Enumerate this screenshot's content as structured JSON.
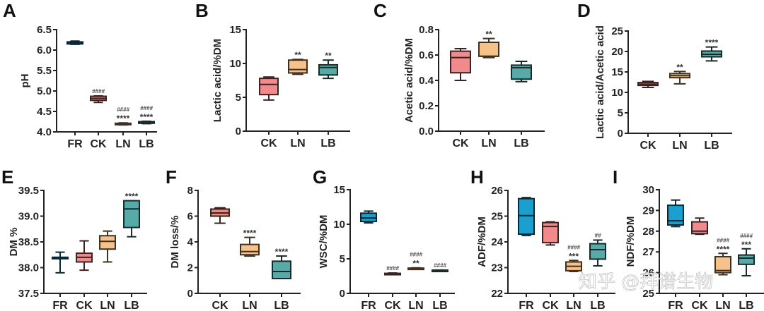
{
  "watermark": "知乎 @拜谱生物",
  "chart_data": [
    {
      "id": "A",
      "type": "box",
      "ylabel": "pH",
      "ylim": [
        4.0,
        6.5
      ],
      "yticks": [
        "4.0",
        "4.5",
        "5.0",
        "5.5",
        "6.0",
        "6.5"
      ],
      "ytick_values": [
        4.0,
        4.5,
        5.0,
        5.5,
        6.0,
        6.5
      ],
      "categories": [
        "FR",
        "CK",
        "LN",
        "LB"
      ],
      "boxes": [
        {
          "group": "FR",
          "min": 6.14,
          "q1": 6.15,
          "median": 6.18,
          "q3": 6.2,
          "max": 6.22,
          "color": "#1a9fcf",
          "annot": [
            "",
            ""
          ]
        },
        {
          "group": "CK",
          "min": 4.72,
          "q1": 4.77,
          "median": 4.82,
          "q3": 4.87,
          "max": 4.88,
          "color": "#e88a80",
          "annot": [
            "####",
            ""
          ]
        },
        {
          "group": "LN",
          "min": 4.17,
          "q1": 4.18,
          "median": 4.2,
          "q3": 4.21,
          "max": 4.22,
          "color": "#f5c497",
          "annot": [
            "####",
            "****"
          ]
        },
        {
          "group": "LB",
          "min": 4.2,
          "q1": 4.21,
          "median": 4.23,
          "q3": 4.25,
          "max": 4.26,
          "color": "#56aaa8",
          "annot": [
            "####",
            "****"
          ]
        }
      ]
    },
    {
      "id": "B",
      "type": "box",
      "ylabel": "Lactic acid/%DM",
      "ylim": [
        0,
        15
      ],
      "yticks": [
        "0",
        "5",
        "10",
        "15"
      ],
      "ytick_values": [
        0,
        5,
        10,
        15
      ],
      "categories": [
        "CK",
        "LN",
        "LB"
      ],
      "boxes": [
        {
          "group": "CK",
          "min": 4.6,
          "q1": 5.4,
          "median": 6.9,
          "q3": 7.8,
          "max": 8.0,
          "color": "#f08a8c",
          "annot": [
            "",
            ""
          ]
        },
        {
          "group": "LN",
          "min": 8.4,
          "q1": 8.6,
          "median": 9.1,
          "q3": 10.5,
          "max": 10.6,
          "color": "#f7c289",
          "annot": [
            "",
            "**"
          ]
        },
        {
          "group": "LB",
          "min": 7.8,
          "q1": 8.3,
          "median": 9.4,
          "q3": 9.8,
          "max": 10.5,
          "color": "#56aaa8",
          "annot": [
            "",
            "**"
          ]
        }
      ]
    },
    {
      "id": "C",
      "type": "box",
      "ylabel": "Acetic acid/%DM",
      "ylim": [
        0.0,
        0.8
      ],
      "yticks": [
        "0.0",
        "0.2",
        "0.4",
        "0.6",
        "0.8"
      ],
      "ytick_values": [
        0.0,
        0.2,
        0.4,
        0.6,
        0.8
      ],
      "categories": [
        "CK",
        "LN",
        "LB"
      ],
      "boxes": [
        {
          "group": "CK",
          "min": 0.4,
          "q1": 0.46,
          "median": 0.58,
          "q3": 0.63,
          "max": 0.65,
          "color": "#f08a8c",
          "annot": [
            "",
            ""
          ]
        },
        {
          "group": "LN",
          "min": 0.58,
          "q1": 0.59,
          "median": 0.59,
          "q3": 0.7,
          "max": 0.73,
          "color": "#f7c289",
          "annot": [
            "",
            "**"
          ]
        },
        {
          "group": "LB",
          "min": 0.39,
          "q1": 0.41,
          "median": 0.5,
          "q3": 0.52,
          "max": 0.55,
          "color": "#56aaa8",
          "annot": [
            "",
            ""
          ]
        }
      ]
    },
    {
      "id": "D",
      "type": "box",
      "ylabel": "Lactic acid/Acetic acid",
      "ylim": [
        0,
        25
      ],
      "yticks": [
        "0",
        "5",
        "10",
        "15",
        "20",
        "25"
      ],
      "ytick_values": [
        0,
        5,
        10,
        15,
        20,
        25
      ],
      "categories": [
        "CK",
        "LN",
        "LB"
      ],
      "boxes": [
        {
          "group": "CK",
          "min": 11.2,
          "q1": 11.7,
          "median": 12.0,
          "q3": 12.4,
          "max": 12.7,
          "color": "#f08a8c",
          "annot": [
            "",
            ""
          ]
        },
        {
          "group": "LN",
          "min": 12.1,
          "q1": 13.6,
          "median": 14.1,
          "q3": 14.6,
          "max": 15.1,
          "color": "#f7c289",
          "annot": [
            "",
            "**"
          ]
        },
        {
          "group": "LB",
          "min": 17.7,
          "q1": 18.7,
          "median": 19.3,
          "q3": 20.1,
          "max": 21.1,
          "color": "#56aaa8",
          "annot": [
            "",
            "****"
          ]
        }
      ]
    },
    {
      "id": "E",
      "type": "box",
      "ylabel": "DM %",
      "ylim": [
        37.5,
        39.5
      ],
      "yticks": [
        "37.5",
        "38.0",
        "38.5",
        "39.0",
        "39.5"
      ],
      "ytick_values": [
        37.5,
        38.0,
        38.5,
        39.0,
        39.5
      ],
      "categories": [
        "FR",
        "CK",
        "LN",
        "LB"
      ],
      "boxes": [
        {
          "group": "FR",
          "min": 37.9,
          "q1": 38.2,
          "median": 38.2,
          "q3": 38.2,
          "max": 38.3,
          "color": "#1a9fcf",
          "annot": [
            "",
            ""
          ]
        },
        {
          "group": "CK",
          "min": 37.95,
          "q1": 38.11,
          "median": 38.2,
          "q3": 38.28,
          "max": 38.52,
          "color": "#f08a8c",
          "annot": [
            "",
            ""
          ]
        },
        {
          "group": "LN",
          "min": 38.11,
          "q1": 38.36,
          "median": 38.51,
          "q3": 38.62,
          "max": 38.71,
          "color": "#f7c289",
          "annot": [
            "",
            ""
          ]
        },
        {
          "group": "LB",
          "min": 38.6,
          "q1": 38.78,
          "median": 39.14,
          "q3": 39.3,
          "max": 39.3,
          "color": "#56aaa8",
          "annot": [
            "",
            "****"
          ]
        }
      ]
    },
    {
      "id": "F",
      "type": "box",
      "ylabel": "DM loss/%",
      "ylim": [
        0,
        8
      ],
      "yticks": [
        "0",
        "2",
        "4",
        "6",
        "8"
      ],
      "ytick_values": [
        0,
        2,
        4,
        6,
        8
      ],
      "categories": [
        "CK",
        "LN",
        "LB"
      ],
      "boxes": [
        {
          "group": "CK",
          "min": 5.45,
          "q1": 6.0,
          "median": 6.25,
          "q3": 6.55,
          "max": 6.65,
          "color": "#e88a80",
          "annot": [
            "",
            ""
          ]
        },
        {
          "group": "LN",
          "min": 2.9,
          "q1": 3.0,
          "median": 3.25,
          "q3": 3.8,
          "max": 4.35,
          "color": "#f7c289",
          "annot": [
            "",
            "****"
          ]
        },
        {
          "group": "LB",
          "min": 1.15,
          "q1": 1.15,
          "median": 1.7,
          "q3": 2.5,
          "max": 2.9,
          "color": "#56aaa8",
          "annot": [
            "",
            "****"
          ]
        }
      ]
    },
    {
      "id": "G",
      "type": "box",
      "ylabel": "WSC/%DM",
      "ylim": [
        0,
        15
      ],
      "yticks": [
        "0",
        "5",
        "10",
        "15"
      ],
      "ytick_values": [
        0,
        5,
        10,
        15
      ],
      "categories": [
        "FR",
        "CK",
        "LN",
        "LB"
      ],
      "boxes": [
        {
          "group": "FR",
          "min": 10.2,
          "q1": 10.4,
          "median": 10.9,
          "q3": 11.6,
          "max": 11.9,
          "color": "#1a9fcf",
          "annot": [
            "",
            ""
          ]
        },
        {
          "group": "CK",
          "min": 2.75,
          "q1": 2.78,
          "median": 2.85,
          "q3": 2.9,
          "max": 2.95,
          "color": "#e88a80",
          "annot": [
            "####",
            ""
          ]
        },
        {
          "group": "LN",
          "min": 3.55,
          "q1": 3.58,
          "median": 3.62,
          "q3": 3.66,
          "max": 3.7,
          "color": "#f7c289",
          "annot": [
            "####",
            "**"
          ]
        },
        {
          "group": "LB",
          "min": 3.32,
          "q1": 3.34,
          "median": 3.35,
          "q3": 3.36,
          "max": 3.38,
          "color": "#56aaa8",
          "annot": [
            "####",
            ""
          ]
        }
      ]
    },
    {
      "id": "H",
      "type": "box",
      "ylabel": "ADF/%DM",
      "ylim": [
        22,
        26
      ],
      "yticks": [
        "22",
        "23",
        "24",
        "25",
        "26"
      ],
      "ytick_values": [
        22,
        23,
        24,
        25,
        26
      ],
      "categories": [
        "FR",
        "CK",
        "LN",
        "LB"
      ],
      "boxes": [
        {
          "group": "FR",
          "min": 24.25,
          "q1": 24.3,
          "median": 25.02,
          "q3": 25.68,
          "max": 25.72,
          "color": "#1a9fcf",
          "annot": [
            "",
            ""
          ]
        },
        {
          "group": "CK",
          "min": 23.88,
          "q1": 23.97,
          "median": 24.6,
          "q3": 24.75,
          "max": 24.78,
          "color": "#f08a8c",
          "annot": [
            "",
            ""
          ]
        },
        {
          "group": "LN",
          "min": 22.85,
          "q1": 22.88,
          "median": 23.05,
          "q3": 23.22,
          "max": 23.28,
          "color": "#f7c289",
          "annot": [
            "####",
            "***"
          ]
        },
        {
          "group": "LB",
          "min": 23.07,
          "q1": 23.33,
          "median": 23.7,
          "q3": 23.93,
          "max": 24.07,
          "color": "#56aaa8",
          "annot": [
            "##",
            ""
          ]
        }
      ]
    },
    {
      "id": "I",
      "type": "box",
      "ylabel": "NDF/%DM",
      "ylim": [
        25,
        30
      ],
      "yticks": [
        "25",
        "26",
        "27",
        "28",
        "29",
        "30"
      ],
      "ytick_values": [
        25,
        26,
        27,
        28,
        29,
        30
      ],
      "categories": [
        "FR",
        "CK",
        "LN",
        "LB"
      ],
      "boxes": [
        {
          "group": "FR",
          "min": 28.22,
          "q1": 28.3,
          "median": 28.5,
          "q3": 29.25,
          "max": 29.5,
          "color": "#1a9fcf",
          "annot": [
            "",
            ""
          ]
        },
        {
          "group": "CK",
          "min": 27.85,
          "q1": 27.88,
          "median": 28.0,
          "q3": 28.45,
          "max": 28.63,
          "color": "#f08a8c",
          "annot": [
            "",
            ""
          ]
        },
        {
          "group": "LN",
          "min": 25.9,
          "q1": 26.0,
          "median": 26.1,
          "q3": 26.77,
          "max": 26.93,
          "color": "#f7c289",
          "annot": [
            "####",
            "****"
          ]
        },
        {
          "group": "LB",
          "min": 25.85,
          "q1": 26.4,
          "median": 26.7,
          "q3": 26.85,
          "max": 27.15,
          "color": "#56aaa8",
          "annot": [
            "####",
            "***"
          ]
        }
      ]
    }
  ]
}
